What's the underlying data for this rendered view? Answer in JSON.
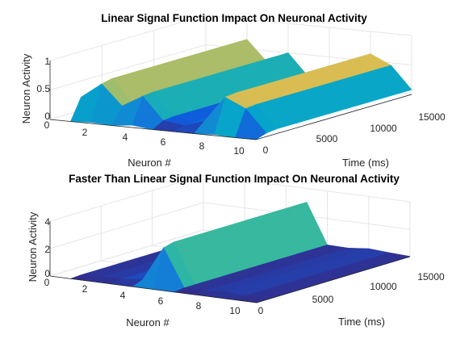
{
  "chart_data": [
    {
      "type": "surface",
      "title": "Linear Signal Function Impact On Neuronal Activity",
      "xlabel": "Neuron #",
      "ylabel": "Time (ms)",
      "zlabel": "Neuron Activity",
      "xlim": [
        0,
        10
      ],
      "ylim": [
        0,
        15000
      ],
      "zlim": [
        0,
        1
      ],
      "xticks": [
        "0",
        "2",
        "4",
        "6",
        "8",
        "10"
      ],
      "yticks": [
        "0",
        "5000",
        "10000",
        "15000"
      ],
      "zticks": [
        "0",
        "0.5",
        "1"
      ],
      "grid": true,
      "colormap": "parula",
      "colors": [
        "#352a87",
        "#0f5cdd",
        "#1481d6",
        "#06a4ca",
        "#2eb7a4",
        "#87bf77",
        "#d1bb59",
        "#fec832",
        "#f9fb0e"
      ],
      "neurons": [
        1,
        2,
        3,
        4,
        5,
        6,
        7,
        8,
        9,
        10
      ],
      "time_ms": [
        0,
        1000,
        2000,
        3000,
        4000,
        5000,
        6000,
        7000,
        8000,
        9000,
        10000,
        11000,
        12000,
        13000,
        14000,
        15000
      ],
      "z": [
        [
          0.0,
          0.36,
          0.38,
          0.38,
          0.38,
          0.38,
          0.38,
          0.4,
          0.42,
          0.42,
          0.42,
          0.42,
          0.42,
          0.42,
          0.42,
          0.42
        ],
        [
          0.02,
          0.62,
          0.66,
          0.66,
          0.66,
          0.66,
          0.66,
          0.66,
          0.66,
          0.66,
          0.66,
          0.66,
          0.66,
          0.66,
          0.66,
          0.66
        ],
        [
          0.0,
          0.28,
          0.3,
          0.3,
          0.3,
          0.3,
          0.3,
          0.3,
          0.3,
          0.3,
          0.3,
          0.3,
          0.3,
          0.3,
          0.3,
          0.3
        ],
        [
          0.04,
          0.48,
          0.5,
          0.5,
          0.5,
          0.5,
          0.5,
          0.5,
          0.5,
          0.5,
          0.5,
          0.5,
          0.5,
          0.5,
          0.5,
          0.5
        ],
        [
          0.0,
          0.1,
          0.12,
          0.12,
          0.12,
          0.12,
          0.12,
          0.12,
          0.12,
          0.12,
          0.12,
          0.12,
          0.12,
          0.12,
          0.12,
          0.12
        ],
        [
          0.0,
          0.05,
          0.06,
          0.06,
          0.06,
          0.06,
          0.06,
          0.06,
          0.06,
          0.06,
          0.06,
          0.06,
          0.06,
          0.06,
          0.06,
          0.06
        ],
        [
          0.0,
          0.16,
          0.18,
          0.18,
          0.18,
          0.18,
          0.18,
          0.18,
          0.18,
          0.18,
          0.18,
          0.18,
          0.18,
          0.18,
          0.18,
          0.18
        ],
        [
          0.02,
          0.6,
          0.62,
          0.62,
          0.62,
          0.62,
          0.62,
          0.62,
          0.62,
          0.62,
          0.62,
          0.62,
          0.62,
          0.62,
          0.62,
          0.62
        ],
        [
          0.0,
          0.44,
          0.46,
          0.46,
          0.46,
          0.46,
          0.46,
          0.46,
          0.46,
          0.46,
          0.46,
          0.46,
          0.46,
          0.46,
          0.46,
          0.46
        ],
        [
          0.0,
          0.06,
          0.08,
          0.08,
          0.08,
          0.08,
          0.08,
          0.08,
          0.08,
          0.08,
          0.08,
          0.08,
          0.08,
          0.08,
          0.08,
          0.08
        ]
      ]
    },
    {
      "type": "surface",
      "title": "Faster Than Linear Signal Function Impact On Neuronal Activity",
      "xlabel": "Neuron #",
      "ylabel": "Time (ms)",
      "zlabel": "Neuron Activity",
      "xlim": [
        0,
        10
      ],
      "ylim": [
        0,
        15000
      ],
      "zlim": [
        0,
        4
      ],
      "xticks": [
        "0",
        "2",
        "4",
        "6",
        "8",
        "10"
      ],
      "yticks": [
        "0",
        "5000",
        "10000",
        "15000"
      ],
      "zticks": [
        "0",
        "2",
        "4"
      ],
      "grid": true,
      "colormap": "parula",
      "colors": [
        "#352a87",
        "#0f5cdd",
        "#1481d6",
        "#06a4ca",
        "#2eb7a4",
        "#87bf77",
        "#d1bb59",
        "#fec832",
        "#f9fb0e"
      ],
      "neurons": [
        1,
        2,
        3,
        4,
        5,
        6,
        7,
        8,
        9,
        10
      ],
      "time_ms": [
        0,
        1000,
        2000,
        3000,
        4000,
        5000,
        6000,
        7000,
        8000,
        9000,
        10000,
        11000,
        12000,
        13000,
        14000,
        15000
      ],
      "z": [
        [
          0.0,
          0.05,
          0.05,
          0.05,
          0.05,
          0.05,
          0.05,
          0.05,
          0.05,
          0.05,
          0.05,
          0.05,
          0.05,
          0.05,
          0.05,
          0.05
        ],
        [
          0.0,
          0.1,
          0.1,
          0.1,
          0.1,
          0.1,
          0.1,
          0.1,
          0.1,
          0.1,
          0.1,
          0.1,
          0.1,
          0.1,
          0.1,
          0.1
        ],
        [
          0.0,
          0.15,
          0.15,
          0.15,
          0.15,
          0.15,
          0.15,
          0.15,
          0.15,
          0.15,
          0.15,
          0.15,
          0.15,
          0.15,
          0.15,
          0.15
        ],
        [
          0.0,
          0.3,
          0.35,
          0.35,
          0.35,
          0.35,
          0.35,
          0.35,
          0.35,
          0.35,
          0.35,
          0.35,
          0.35,
          0.35,
          0.35,
          0.35
        ],
        [
          0.0,
          2.8,
          3.0,
          3.0,
          3.0,
          3.0,
          3.0,
          3.0,
          3.0,
          3.0,
          3.0,
          3.0,
          3.0,
          3.0,
          3.0,
          3.0
        ],
        [
          0.0,
          0.08,
          0.08,
          0.08,
          0.08,
          0.08,
          0.08,
          0.08,
          0.08,
          0.08,
          0.08,
          0.08,
          0.08,
          0.08,
          0.08,
          0.08
        ],
        [
          0.0,
          0.05,
          0.05,
          0.05,
          0.05,
          0.05,
          0.05,
          0.05,
          0.05,
          0.05,
          0.05,
          0.05,
          0.05,
          0.05,
          0.05,
          0.05
        ],
        [
          0.0,
          0.2,
          0.2,
          0.2,
          0.2,
          0.2,
          0.2,
          0.2,
          0.2,
          0.2,
          0.2,
          0.2,
          0.2,
          0.2,
          0.2,
          0.2
        ],
        [
          0.0,
          0.1,
          0.1,
          0.1,
          0.1,
          0.1,
          0.1,
          0.1,
          0.1,
          0.1,
          0.1,
          0.1,
          0.1,
          0.1,
          0.1,
          0.1
        ],
        [
          0.0,
          0.02,
          0.02,
          0.02,
          0.02,
          0.02,
          0.02,
          0.02,
          0.02,
          0.02,
          0.02,
          0.02,
          0.02,
          0.02,
          0.02,
          0.02
        ]
      ]
    }
  ]
}
